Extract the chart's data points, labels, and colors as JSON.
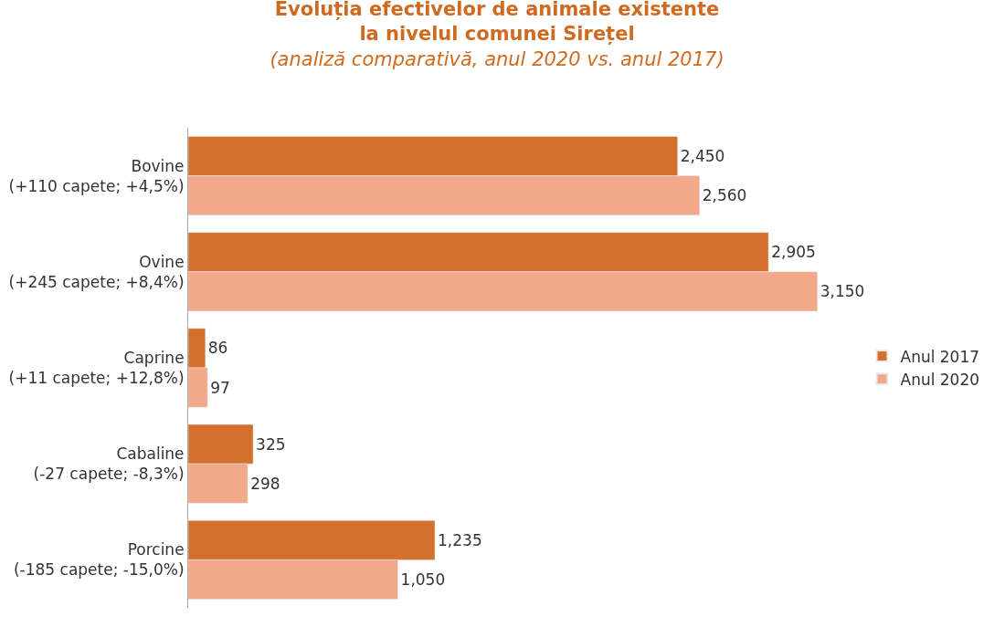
{
  "chart_data": {
    "type": "bar",
    "orientation": "horizontal",
    "title": "Evoluția efectivelor de animale existente\nla nivelul comunei Sirețel",
    "subtitle": "(analiză comparativă, anul 2020 vs. anul 2017)",
    "categories": [
      "Bovine\n(+110 capete; +4,5%)",
      "Ovine\n(+245 capete; +8,4%)",
      "Caprine\n(+11 capete; +12,8%)",
      "Cabaline\n(-27 capete; -8,3%)",
      "Porcine\n(-185 capete; -15,0%)"
    ],
    "series": [
      {
        "name": "Anul 2017",
        "color": "#d4702b",
        "values": [
          2450,
          2905,
          86,
          325,
          1235
        ],
        "value_labels": [
          "2,450",
          "2,905",
          "86",
          "325",
          "1,235"
        ]
      },
      {
        "name": "Anul 2020",
        "color": "#f2a98a",
        "values": [
          2560,
          3150,
          97,
          298,
          1050
        ],
        "value_labels": [
          "2,560",
          "3,150",
          "97",
          "298",
          "1,050"
        ]
      }
    ],
    "legend": "right"
  }
}
